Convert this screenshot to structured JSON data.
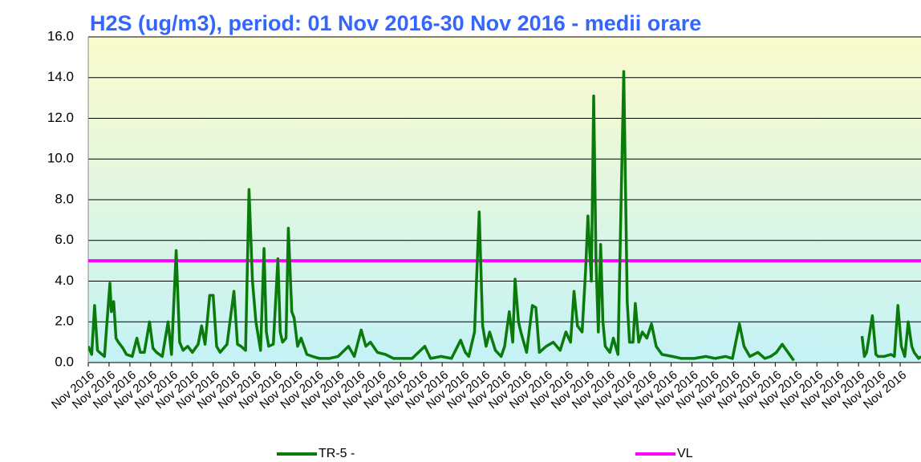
{
  "chart_data": {
    "type": "line",
    "title": "H2S (ug/m3), period: 01 Nov 2016-30 Nov 2016 - medii orare",
    "x": [
      0,
      3,
      5.5,
      8,
      9.7,
      14,
      18.7,
      20,
      22,
      24,
      26,
      30,
      33,
      38,
      42,
      45,
      48.5,
      53,
      56,
      59,
      64,
      69,
      72,
      76,
      79,
      82,
      86,
      90,
      95,
      98,
      101,
      105,
      108,
      111,
      114,
      120,
      126,
      129,
      132,
      136,
      139,
      142,
      145,
      149,
      152,
      154,
      156,
      160,
      164,
      166,
      168,
      171,
      173,
      176,
      178,
      181,
      184,
      189,
      194,
      200,
      208,
      216,
      225,
      230,
      236,
      240,
      244,
      250,
      257,
      264,
      270,
      280,
      291,
      296,
      305,
      314,
      322,
      326,
      329,
      334,
      338,
      341,
      344,
      347,
      352,
      357,
      360,
      364,
      367,
      369,
      372,
      374,
      379,
      384,
      387,
      390,
      396,
      402,
      408,
      413,
      417,
      420,
      423,
      427,
      430,
      432,
      435,
      437,
      439,
      441,
      443,
      445,
      447,
      451,
      454,
      458,
      463,
      466,
      468,
      471,
      473,
      476,
      479,
      483,
      487,
      491,
      496,
      505,
      513,
      524,
      534,
      542,
      551,
      557,
      563,
      567,
      572,
      579,
      585,
      590,
      595,
      600,
      605,
      610,
      615,
      669,
      671,
      673,
      678,
      681,
      683,
      688,
      694,
      697,
      700,
      703,
      706,
      709,
      712,
      714,
      718,
      720
    ],
    "series": [
      {
        "name": "TR-5 -",
        "color": "#0a7a0a",
        "values": [
          0.8,
          0.4,
          2.8,
          0.6,
          0.5,
          0.3,
          3.9,
          2.5,
          3.0,
          1.2,
          1.0,
          0.7,
          0.4,
          0.3,
          1.2,
          0.5,
          0.5,
          2.0,
          0.7,
          0.5,
          0.3,
          2.0,
          0.4,
          5.5,
          1.0,
          0.6,
          0.8,
          0.5,
          0.9,
          1.8,
          0.9,
          3.3,
          3.3,
          0.8,
          0.5,
          0.9,
          3.5,
          0.9,
          0.8,
          0.6,
          8.5,
          4.0,
          2.0,
          0.6,
          5.6,
          1.5,
          0.8,
          0.9,
          5.1,
          1.5,
          1.0,
          1.2,
          6.6,
          2.5,
          2.2,
          0.8,
          1.2,
          0.4,
          0.3,
          0.2,
          0.2,
          0.3,
          0.8,
          0.3,
          1.6,
          0.8,
          1.0,
          0.5,
          0.4,
          0.2,
          0.2,
          0.2,
          0.8,
          0.2,
          0.3,
          0.2,
          1.1,
          0.5,
          0.3,
          1.5,
          7.4,
          1.8,
          0.8,
          1.5,
          0.6,
          0.3,
          0.8,
          2.5,
          1.0,
          4.1,
          2.0,
          1.5,
          0.5,
          2.8,
          2.7,
          0.5,
          0.8,
          1.0,
          0.6,
          1.5,
          1.0,
          3.5,
          1.8,
          1.5,
          4.5,
          7.2,
          4.0,
          13.1,
          5.0,
          1.5,
          5.8,
          2.0,
          0.8,
          0.5,
          1.2,
          0.4,
          14.3,
          3.0,
          1.0,
          1.0,
          2.9,
          1.0,
          1.5,
          1.2,
          1.9,
          0.8,
          0.4,
          0.3,
          0.2,
          0.2,
          0.3,
          0.2,
          0.3,
          0.2,
          1.9,
          0.8,
          0.3,
          0.5,
          0.2,
          0.3,
          0.5,
          0.9,
          0.5,
          0.1,
          null,
          1.3,
          0.3,
          0.5,
          2.3,
          0.4,
          0.3,
          0.3,
          0.4,
          0.3,
          2.8,
          0.8,
          0.3,
          2.0,
          0.8,
          0.5,
          0.2,
          0.3
        ]
      }
    ],
    "reference_lines": [
      {
        "name": "VL",
        "value": 5,
        "color": "#ff00ff"
      }
    ],
    "xlim": [
      0,
      720
    ],
    "xticks": [
      {
        "value": 0,
        "label": "Nov 2016"
      },
      {
        "value": 18,
        "label": "Nov 2016"
      },
      {
        "value": 36,
        "label": "Nov 2016"
      },
      {
        "value": 54,
        "label": "Nov 2016"
      },
      {
        "value": 72,
        "label": "Nov 2016"
      },
      {
        "value": 90,
        "label": "Nov 2016"
      },
      {
        "value": 108,
        "label": "Nov 2016"
      },
      {
        "value": 126,
        "label": "Nov 2016"
      },
      {
        "value": 144,
        "label": "Nov 2016"
      },
      {
        "value": 162,
        "label": "Nov 2016"
      },
      {
        "value": 180,
        "label": "Nov 2016"
      },
      {
        "value": 198,
        "label": "Nov 2016"
      },
      {
        "value": 216,
        "label": "Nov 2016"
      },
      {
        "value": 234,
        "label": "Nov 2016"
      },
      {
        "value": 252,
        "label": "Nov 2016"
      },
      {
        "value": 270,
        "label": "Nov 2016"
      },
      {
        "value": 288,
        "label": "Nov 2016"
      },
      {
        "value": 306,
        "label": "Nov 2016"
      },
      {
        "value": 324,
        "label": "Nov 2016"
      },
      {
        "value": 342,
        "label": "Nov 2016"
      },
      {
        "value": 360,
        "label": "Nov 2016"
      },
      {
        "value": 378,
        "label": "Nov 2016"
      },
      {
        "value": 396,
        "label": "Nov 2016"
      },
      {
        "value": 414,
        "label": "Nov 2016"
      },
      {
        "value": 432,
        "label": "Nov 2016"
      },
      {
        "value": 450,
        "label": "Nov 2016"
      },
      {
        "value": 468,
        "label": "Nov 2016"
      },
      {
        "value": 486,
        "label": "Nov 2016"
      },
      {
        "value": 504,
        "label": "Nov 2016"
      },
      {
        "value": 522,
        "label": "Nov 2016"
      },
      {
        "value": 540,
        "label": "Nov 2016"
      },
      {
        "value": 558,
        "label": "Nov 2016"
      },
      {
        "value": 576,
        "label": "Nov 2016"
      },
      {
        "value": 594,
        "label": "Nov 2016"
      },
      {
        "value": 612,
        "label": "Nov 2016"
      },
      {
        "value": 630,
        "label": "Nov 2016"
      },
      {
        "value": 648,
        "label": "Nov 2016"
      },
      {
        "value": 666,
        "label": "Nov 2016"
      },
      {
        "value": 684,
        "label": "Nov 2016"
      },
      {
        "value": 702,
        "label": "Nov 2016"
      }
    ],
    "ylim": [
      0,
      16
    ],
    "yticks": [
      {
        "value": 0,
        "label": "0.0"
      },
      {
        "value": 2,
        "label": "2.0"
      },
      {
        "value": 4,
        "label": "4.0"
      },
      {
        "value": 6,
        "label": "6.0"
      },
      {
        "value": 8,
        "label": "8.0"
      },
      {
        "value": 10,
        "label": "10.0"
      },
      {
        "value": 12,
        "label": "12.0"
      },
      {
        "value": 14,
        "label": "14.0"
      },
      {
        "value": 16,
        "label": "16.0"
      }
    ],
    "grid": true
  }
}
